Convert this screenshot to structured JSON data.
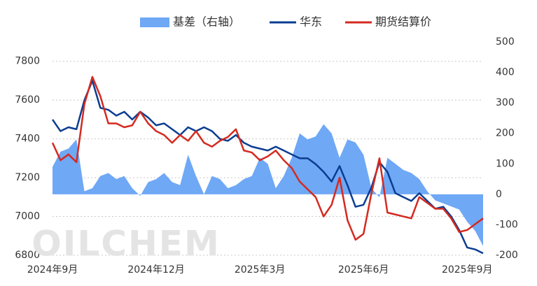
{
  "chart_data": {
    "type": "line",
    "categories": [
      "2024年9月",
      null,
      null,
      null,
      null,
      null,
      null,
      null,
      null,
      null,
      null,
      null,
      null,
      "2024年12月",
      null,
      null,
      null,
      null,
      null,
      null,
      null,
      null,
      null,
      null,
      null,
      null,
      "2025年3月",
      null,
      null,
      null,
      null,
      null,
      null,
      null,
      null,
      null,
      null,
      null,
      null,
      "2025年6月",
      null,
      null,
      null,
      null,
      null,
      null,
      null,
      null,
      null,
      null,
      null,
      null,
      "2025年9月",
      null,
      null
    ],
    "series": [
      {
        "name": "基差（右轴）",
        "kind": "area",
        "axis": "y2",
        "color": "#6fa8f5",
        "values": [
          90,
          140,
          150,
          180,
          10,
          20,
          60,
          70,
          50,
          60,
          20,
          -5,
          40,
          50,
          70,
          40,
          30,
          130,
          60,
          0,
          60,
          50,
          20,
          30,
          50,
          60,
          120,
          100,
          20,
          60,
          120,
          200,
          180,
          190,
          230,
          200,
          120,
          180,
          170,
          130,
          20,
          -10,
          120,
          100,
          80,
          70,
          50,
          10,
          -20,
          -30,
          -40,
          -50,
          -90,
          -120,
          -170
        ]
      },
      {
        "name": "华东",
        "kind": "line",
        "color": "#0b3d91",
        "values": [
          7500,
          7440,
          7460,
          7450,
          7600,
          7700,
          7560,
          7550,
          7520,
          7540,
          7500,
          7540,
          7510,
          7470,
          7480,
          7450,
          7420,
          7460,
          7440,
          7460,
          7440,
          7400,
          7390,
          7420,
          7380,
          7360,
          7350,
          7340,
          7360,
          7340,
          7320,
          7300,
          7300,
          7270,
          7230,
          7180,
          7260,
          7160,
          7050,
          7060,
          7150,
          7280,
          7230,
          7120,
          7100,
          7080,
          7120,
          7080,
          7040,
          7050,
          7000,
          6930,
          6840,
          6830,
          6810
        ]
      },
      {
        "name": "期货结算价",
        "kind": "line",
        "color": "#d42a20",
        "values": [
          7380,
          7290,
          7320,
          7280,
          7580,
          7720,
          7620,
          7480,
          7480,
          7460,
          7470,
          7540,
          7480,
          7440,
          7420,
          7380,
          7420,
          7390,
          7440,
          7380,
          7360,
          7390,
          7410,
          7450,
          7340,
          7330,
          7290,
          7310,
          7340,
          7290,
          7250,
          7180,
          7140,
          7100,
          7000,
          7060,
          7200,
          6980,
          6880,
          6910,
          7120,
          7300,
          7020,
          7010,
          7000,
          6990,
          7100,
          7070,
          7040,
          7040,
          6990,
          6920,
          6930,
          6960,
          6990
        ]
      }
    ],
    "ylim": [
      6800,
      7900
    ],
    "yticks": [
      6800,
      7000,
      7200,
      7400,
      7600,
      7800
    ],
    "y2lim": [
      -200,
      500
    ],
    "y2ticks": [
      -200,
      -100,
      0,
      100,
      200,
      300,
      400,
      500
    ],
    "grid": true,
    "watermark": "OILCHEM"
  }
}
